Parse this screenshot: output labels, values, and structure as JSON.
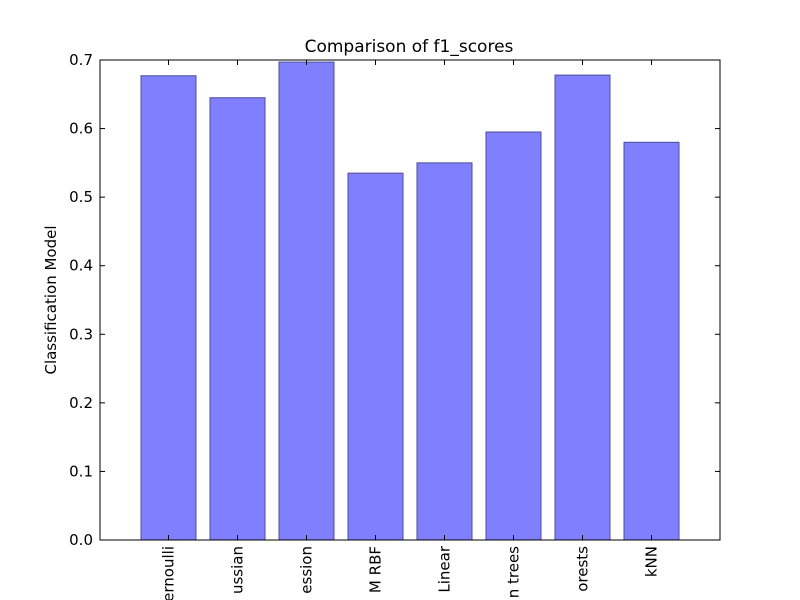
{
  "chart_data": {
    "type": "bar",
    "title": "Comparison of f1_scores",
    "xlabel": "",
    "ylabel": "Classification Model",
    "categories": [
      "ernoulli",
      "ussian",
      "ession",
      "M RBF",
      "Linear",
      "n trees",
      "orests",
      "kNN"
    ],
    "values": [
      0.677,
      0.645,
      0.697,
      0.535,
      0.55,
      0.595,
      0.678,
      0.58
    ],
    "ylim": [
      0,
      0.7
    ],
    "yticks": [
      "0.0",
      "0.1",
      "0.2",
      "0.3",
      "0.4",
      "0.5",
      "0.6",
      "0.7"
    ],
    "bar_color": "#8080ff",
    "bar_edge_color": "#4d4d99",
    "grid": false,
    "legend": "none"
  }
}
